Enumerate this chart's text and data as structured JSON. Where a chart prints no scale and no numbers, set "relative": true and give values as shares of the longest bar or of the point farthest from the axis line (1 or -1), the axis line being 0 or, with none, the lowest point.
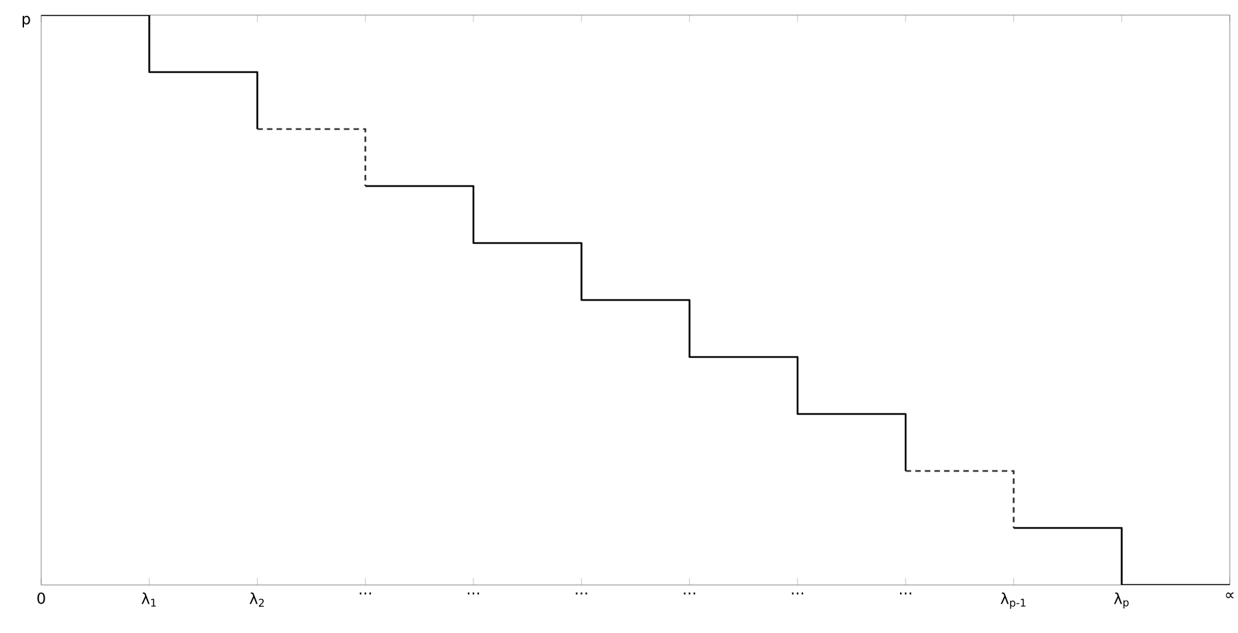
{
  "chart_data": {
    "type": "step",
    "relative": true,
    "annotations": [
      "p"
    ],
    "xlim": [
      0,
      11
    ],
    "xticks": [
      0,
      {
        "value": 1,
        "label": "λ$_{1}$"
      },
      {
        "value": 2,
        "label": "λ$_{2}$"
      },
      {
        "value": 3,
        "label": "..."
      },
      {
        "value": 4,
        "label": "..."
      },
      {
        "value": 5,
        "label": "..."
      },
      {
        "value": 6,
        "label": "..."
      },
      {
        "value": 7,
        "label": "..."
      },
      {
        "value": 8,
        "label": "..."
      },
      {
        "value": 9,
        "label": "λ$_{p-1}$"
      },
      {
        "value": 10,
        "label": "λ$_{p}$"
      },
      {
        "value": 11,
        "label": "∝"
      }
    ],
    "series": [
      {
        "color": "#000000",
        "line_style": "solid",
        "x": [
          0,
          1,
          2,
          2,
          2.5,
          3,
          4,
          5,
          6,
          7,
          8,
          8,
          8.5,
          9,
          10,
          11
        ],
        "values": [
          1,
          1,
          0.9,
          0.8,
          null,
          0.7,
          0.7,
          0.6,
          0.5,
          0.4,
          0.3,
          0.2,
          null,
          0.1,
          0.1,
          0
        ]
      },
      {
        "color": "#333333",
        "line_style": "dashed",
        "x": [
          2,
          3,
          3
        ],
        "values": [
          0.8,
          0.8,
          0.7
        ]
      },
      {
        "color": "#333333",
        "line_style": "dashed",
        "x": [
          8,
          9,
          9
        ],
        "values": [
          0.2,
          0.2,
          0.1
        ]
      }
    ]
  }
}
